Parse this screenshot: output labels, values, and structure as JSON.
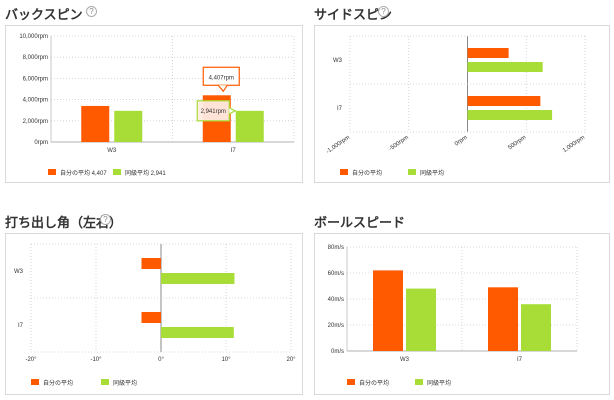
{
  "colors": {
    "self": "#ff5a00",
    "peer": "#a8dd37"
  },
  "sections": {
    "back_spin_title": "バックスピン",
    "side_spin_title": "サイドスピン",
    "launch_angle_title": "打ち出し角（左右）",
    "ball_speed_title": "ボールスピード",
    "help_icon_glyph": "?"
  },
  "legends": {
    "back_spin": {
      "self": "自分の平均 4,407",
      "peer": "同級平均 2,941"
    },
    "side_spin": {
      "self": "自分の平均",
      "peer": "同級平均"
    },
    "launch_angle": {
      "self": "自分の平均",
      "peer": "同級平均"
    },
    "ball_speed": {
      "self": "自分の平均",
      "peer": "同級平均"
    }
  },
  "chart_data": [
    {
      "id": "back_spin",
      "type": "bar",
      "title": "バックスピン",
      "categories": [
        "W3",
        "I7"
      ],
      "series": [
        {
          "name": "自分の平均",
          "values": [
            3400,
            4407
          ]
        },
        {
          "name": "同級平均",
          "values": [
            2941,
            2941
          ]
        }
      ],
      "ylim": [
        0,
        10000
      ],
      "yticks": [
        "0rpm",
        "2,000rpm",
        "4,000rpm",
        "6,000rpm",
        "8,000rpm",
        "10,000rpm"
      ],
      "tooltips": [
        "4,407rpm",
        "2,941rpm"
      ],
      "grid": true,
      "legend": "bottom-left"
    },
    {
      "id": "side_spin",
      "type": "bar",
      "orientation": "horizontal",
      "title": "サイドスピン",
      "categories": [
        "W3",
        "I7"
      ],
      "series": [
        {
          "name": "自分の平均",
          "values": [
            350,
            620
          ]
        },
        {
          "name": "同級平均",
          "values": [
            640,
            720
          ]
        }
      ],
      "xlim": [
        -1000,
        1000
      ],
      "xticks": [
        "-1,000rpm",
        "-500rpm",
        "0rpm",
        "500rpm",
        "1,000rpm"
      ],
      "grid": true,
      "legend": "bottom-left"
    },
    {
      "id": "launch_angle",
      "type": "bar",
      "orientation": "horizontal",
      "title": "打ち出し角（左右）",
      "categories": [
        "W3",
        "I7"
      ],
      "series": [
        {
          "name": "自分の平均",
          "values": [
            -3,
            -3
          ]
        },
        {
          "name": "同級平均",
          "values": [
            11.3,
            11.2
          ]
        }
      ],
      "xlim": [
        -20,
        20
      ],
      "xticks": [
        "-20°",
        "-10°",
        "0°",
        "10°",
        "20°"
      ],
      "grid": true,
      "legend": "bottom-left"
    },
    {
      "id": "ball_speed",
      "type": "bar",
      "title": "ボールスピード",
      "categories": [
        "W3",
        "I7"
      ],
      "series": [
        {
          "name": "自分の平均",
          "values": [
            62,
            49
          ]
        },
        {
          "name": "同級平均",
          "values": [
            48,
            36
          ]
        }
      ],
      "ylim": [
        0,
        80
      ],
      "yticks": [
        "0m/s",
        "20m/s",
        "40m/s",
        "60m/s",
        "80m/s"
      ],
      "grid": true,
      "legend": "bottom-left"
    }
  ]
}
